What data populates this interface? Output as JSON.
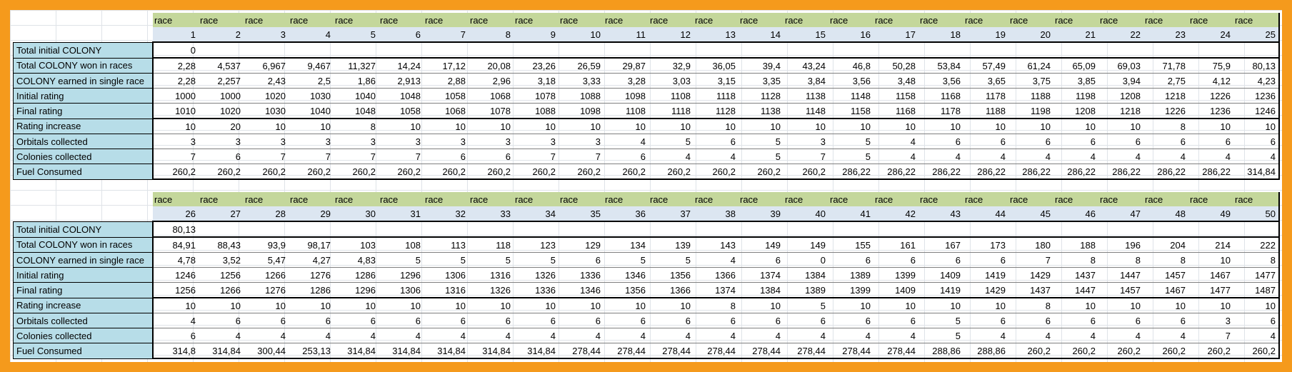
{
  "tables": [
    {
      "race_word": "race",
      "race_numbers": [
        "1",
        "2",
        "3",
        "4",
        "5",
        "6",
        "7",
        "8",
        "9",
        "10",
        "11",
        "12",
        "13",
        "14",
        "15",
        "16",
        "17",
        "18",
        "19",
        "20",
        "21",
        "22",
        "23",
        "24",
        "25"
      ],
      "rows": [
        {
          "label": "Total initial COLONY",
          "values": [
            "0",
            "",
            "",
            "",
            "",
            "",
            "",
            "",
            "",
            "",
            "",
            "",
            "",
            "",
            "",
            "",
            "",
            "",
            "",
            "",
            "",
            "",
            "",
            "",
            ""
          ]
        },
        {
          "label": "Total COLONY won in races",
          "values": [
            "2,28",
            "4,537",
            "6,967",
            "9,467",
            "11,327",
            "14,24",
            "17,12",
            "20,08",
            "23,26",
            "26,59",
            "29,87",
            "32,9",
            "36,05",
            "39,4",
            "43,24",
            "46,8",
            "50,28",
            "53,84",
            "57,49",
            "61,24",
            "65,09",
            "69,03",
            "71,78",
            "75,9",
            "80,13"
          ]
        },
        {
          "label": "COLONY earned in single race",
          "values": [
            "2,28",
            "2,257",
            "2,43",
            "2,5",
            "1,86",
            "2,913",
            "2,88",
            "2,96",
            "3,18",
            "3,33",
            "3,28",
            "3,03",
            "3,15",
            "3,35",
            "3,84",
            "3,56",
            "3,48",
            "3,56",
            "3,65",
            "3,75",
            "3,85",
            "3,94",
            "2,75",
            "4,12",
            "4,23"
          ]
        },
        {
          "label": "Initial rating",
          "values": [
            "1000",
            "1000",
            "1020",
            "1030",
            "1040",
            "1048",
            "1058",
            "1068",
            "1078",
            "1088",
            "1098",
            "1108",
            "1118",
            "1128",
            "1138",
            "1148",
            "1158",
            "1168",
            "1178",
            "1188",
            "1198",
            "1208",
            "1218",
            "1226",
            "1236"
          ]
        },
        {
          "label": "Final rating",
          "values": [
            "1010",
            "1020",
            "1030",
            "1040",
            "1048",
            "1058",
            "1068",
            "1078",
            "1088",
            "1098",
            "1108",
            "1118",
            "1128",
            "1138",
            "1148",
            "1158",
            "1168",
            "1178",
            "1188",
            "1198",
            "1208",
            "1218",
            "1226",
            "1236",
            "1246"
          ]
        },
        {
          "label": "Rating increase",
          "values": [
            "10",
            "20",
            "10",
            "10",
            "8",
            "10",
            "10",
            "10",
            "10",
            "10",
            "10",
            "10",
            "10",
            "10",
            "10",
            "10",
            "10",
            "10",
            "10",
            "10",
            "10",
            "10",
            "8",
            "10",
            "10"
          ]
        },
        {
          "label": "Orbitals collected",
          "values": [
            "3",
            "3",
            "3",
            "3",
            "3",
            "3",
            "3",
            "3",
            "3",
            "3",
            "4",
            "5",
            "6",
            "5",
            "3",
            "5",
            "4",
            "6",
            "6",
            "6",
            "6",
            "6",
            "6",
            "6",
            "6"
          ]
        },
        {
          "label": "Colonies collected",
          "values": [
            "7",
            "6",
            "7",
            "7",
            "7",
            "7",
            "6",
            "6",
            "7",
            "7",
            "6",
            "4",
            "4",
            "5",
            "7",
            "5",
            "4",
            "4",
            "4",
            "4",
            "4",
            "4",
            "4",
            "4",
            "4"
          ]
        },
        {
          "label": "Fuel Consumed",
          "values": [
            "260,2",
            "260,2",
            "260,2",
            "260,2",
            "260,2",
            "260,2",
            "260,2",
            "260,2",
            "260,2",
            "260,2",
            "260,2",
            "260,2",
            "260,2",
            "260,2",
            "260,2",
            "286,22",
            "286,22",
            "286,22",
            "286,22",
            "286,22",
            "286,22",
            "286,22",
            "286,22",
            "286,22",
            "314,84"
          ]
        }
      ]
    },
    {
      "race_word": "race",
      "race_numbers": [
        "26",
        "27",
        "28",
        "29",
        "30",
        "31",
        "32",
        "33",
        "34",
        "35",
        "36",
        "37",
        "38",
        "39",
        "40",
        "41",
        "42",
        "43",
        "44",
        "45",
        "46",
        "47",
        "48",
        "49",
        "50"
      ],
      "rows": [
        {
          "label": "Total initial COLONY",
          "values": [
            "80,13",
            "",
            "",
            "",
            "",
            "",
            "",
            "",
            "",
            "",
            "",
            "",
            "",
            "",
            "",
            "",
            "",
            "",
            "",
            "",
            "",
            "",
            "",
            "",
            ""
          ]
        },
        {
          "label": "Total COLONY won in races",
          "values": [
            "84,91",
            "88,43",
            "93,9",
            "98,17",
            "103",
            "108",
            "113",
            "118",
            "123",
            "129",
            "134",
            "139",
            "143",
            "149",
            "149",
            "155",
            "161",
            "167",
            "173",
            "180",
            "188",
            "196",
            "204",
            "214",
            "222"
          ]
        },
        {
          "label": "COLONY earned in single race",
          "values": [
            "4,78",
            "3,52",
            "5,47",
            "4,27",
            "4,83",
            "5",
            "5",
            "5",
            "5",
            "6",
            "5",
            "5",
            "4",
            "6",
            "0",
            "6",
            "6",
            "6",
            "6",
            "7",
            "8",
            "8",
            "8",
            "10",
            "8"
          ]
        },
        {
          "label": "Initial rating",
          "values": [
            "1246",
            "1256",
            "1266",
            "1276",
            "1286",
            "1296",
            "1306",
            "1316",
            "1326",
            "1336",
            "1346",
            "1356",
            "1366",
            "1374",
            "1384",
            "1389",
            "1399",
            "1409",
            "1419",
            "1429",
            "1437",
            "1447",
            "1457",
            "1467",
            "1477"
          ]
        },
        {
          "label": "Final rating",
          "values": [
            "1256",
            "1266",
            "1276",
            "1286",
            "1296",
            "1306",
            "1316",
            "1326",
            "1336",
            "1346",
            "1356",
            "1366",
            "1374",
            "1384",
            "1389",
            "1399",
            "1409",
            "1419",
            "1429",
            "1437",
            "1447",
            "1457",
            "1467",
            "1477",
            "1487"
          ]
        },
        {
          "label": "Rating increase",
          "values": [
            "10",
            "10",
            "10",
            "10",
            "10",
            "10",
            "10",
            "10",
            "10",
            "10",
            "10",
            "10",
            "8",
            "10",
            "5",
            "10",
            "10",
            "10",
            "10",
            "8",
            "10",
            "10",
            "10",
            "10",
            "10"
          ]
        },
        {
          "label": "Orbitals collected",
          "values": [
            "4",
            "6",
            "6",
            "6",
            "6",
            "6",
            "6",
            "6",
            "6",
            "6",
            "6",
            "6",
            "6",
            "6",
            "6",
            "6",
            "6",
            "5",
            "6",
            "6",
            "6",
            "6",
            "6",
            "3",
            "6"
          ]
        },
        {
          "label": "Colonies collected",
          "values": [
            "6",
            "4",
            "4",
            "4",
            "4",
            "4",
            "4",
            "4",
            "4",
            "4",
            "4",
            "4",
            "4",
            "4",
            "4",
            "4",
            "4",
            "5",
            "4",
            "4",
            "4",
            "4",
            "4",
            "7",
            "4"
          ]
        },
        {
          "label": "Fuel Consumed",
          "values": [
            "314,8",
            "314,84",
            "300,44",
            "253,13",
            "314,84",
            "314,84",
            "314,84",
            "314,84",
            "314,84",
            "278,44",
            "278,44",
            "278,44",
            "278,44",
            "278,44",
            "278,44",
            "278,44",
            "278,44",
            "288,86",
            "288,86",
            "260,2",
            "260,2",
            "260,2",
            "260,2",
            "260,2",
            "260,2"
          ]
        }
      ]
    }
  ]
}
